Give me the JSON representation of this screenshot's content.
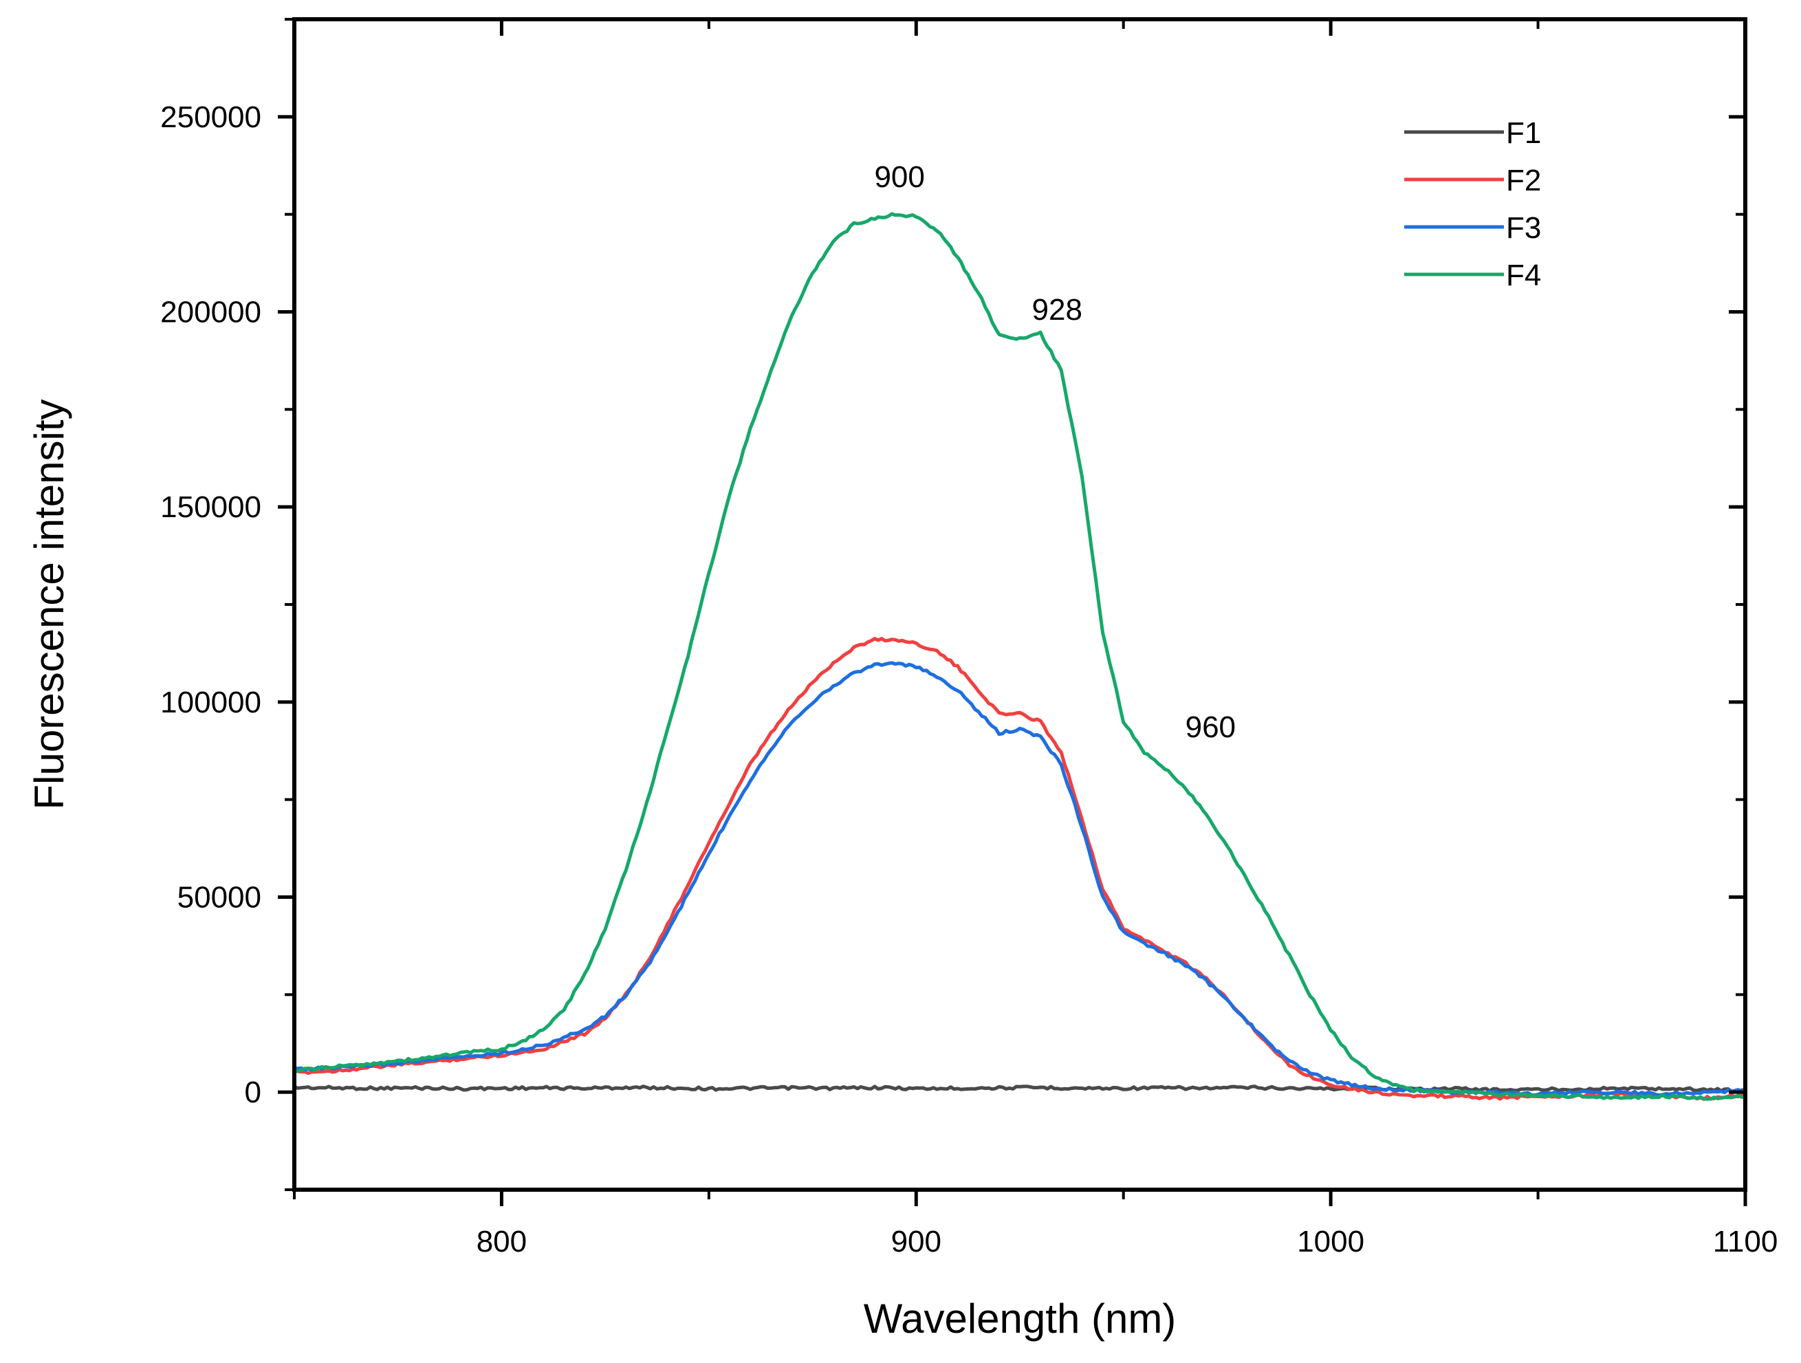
{
  "chart_data": {
    "type": "line",
    "title": "",
    "xlabel": "Wavelength (nm)",
    "ylabel": "Fluorescence intensity",
    "xlim": [
      750,
      1100
    ],
    "ylim": [
      -25000,
      275000
    ],
    "xticks": [
      800,
      900,
      1000,
      1100
    ],
    "yticks": [
      0,
      50000,
      100000,
      150000,
      200000,
      250000
    ],
    "x_minor_ticks": [
      750,
      850,
      950,
      1050
    ],
    "y_minor_ticks": [
      -25000,
      25000,
      75000,
      125000,
      175000,
      225000,
      275000
    ],
    "grid": false,
    "legend_position": "top-right",
    "series": [
      {
        "name": "F1",
        "color": "#4a4a4a",
        "x": [
          750,
          760,
          770,
          780,
          790,
          800,
          810,
          820,
          830,
          840,
          850,
          860,
          870,
          880,
          890,
          900,
          910,
          920,
          930,
          940,
          950,
          960,
          970,
          980,
          990,
          1000,
          1010,
          1020,
          1030,
          1040,
          1050,
          1060,
          1070,
          1080,
          1090,
          1100
        ],
        "values": [
          1200,
          1100,
          1000,
          1100,
          900,
          1000,
          1100,
          1000,
          1200,
          1100,
          900,
          1000,
          1100,
          1000,
          1200,
          900,
          1000,
          1100,
          1200,
          1000,
          1000,
          1100,
          1000,
          1200,
          1000,
          900,
          1000,
          800,
          900,
          600,
          700,
          800,
          1000,
          900,
          700,
          500
        ]
      },
      {
        "name": "F2",
        "color": "#f04040",
        "x": [
          750,
          760,
          770,
          780,
          790,
          800,
          810,
          820,
          825,
          830,
          835,
          840,
          845,
          850,
          855,
          860,
          865,
          870,
          875,
          880,
          885,
          890,
          895,
          900,
          905,
          910,
          915,
          920,
          925,
          930,
          935,
          940,
          945,
          950,
          955,
          960,
          965,
          970,
          975,
          980,
          985,
          990,
          995,
          1000,
          1010,
          1020,
          1030,
          1040,
          1050,
          1060,
          1070,
          1080,
          1090,
          1100
        ],
        "values": [
          5000,
          5500,
          6500,
          7500,
          8500,
          9500,
          11000,
          15000,
          19000,
          25000,
          33000,
          43000,
          53000,
          64000,
          74000,
          84000,
          92000,
          99000,
          105000,
          110000,
          114000,
          116000,
          116000,
          115000,
          113000,
          109000,
          103000,
          97000,
          97000,
          95000,
          87000,
          70000,
          52000,
          42000,
          39000,
          36000,
          33000,
          29000,
          24000,
          18000,
          12000,
          7000,
          4000,
          2000,
          0,
          -1000,
          -1000,
          -1500,
          -1000,
          -1000,
          -500,
          -1000,
          -1500,
          -1000
        ]
      },
      {
        "name": "F3",
        "color": "#1e6fe0",
        "x": [
          750,
          760,
          770,
          780,
          790,
          800,
          810,
          820,
          825,
          830,
          835,
          840,
          845,
          850,
          855,
          860,
          865,
          870,
          875,
          880,
          885,
          890,
          895,
          900,
          905,
          910,
          915,
          920,
          925,
          930,
          935,
          940,
          945,
          950,
          955,
          960,
          965,
          970,
          975,
          980,
          985,
          990,
          995,
          1000,
          1010,
          1020,
          1030,
          1040,
          1050,
          1060,
          1070,
          1080,
          1090,
          1100
        ],
        "values": [
          6000,
          6200,
          7000,
          8000,
          9000,
          10000,
          12000,
          16000,
          19500,
          25000,
          32000,
          41000,
          51000,
          61000,
          71000,
          80000,
          88000,
          95000,
          100000,
          104000,
          107500,
          109500,
          110000,
          109000,
          106500,
          103000,
          97500,
          92000,
          93000,
          91000,
          84000,
          68000,
          50000,
          41000,
          38000,
          35500,
          32500,
          28500,
          23500,
          18000,
          12500,
          8000,
          5000,
          3000,
          1000,
          500,
          0,
          0,
          -500,
          0,
          0,
          -500,
          0,
          500
        ]
      },
      {
        "name": "F4",
        "color": "#16a86a",
        "x": [
          750,
          760,
          770,
          780,
          790,
          800,
          805,
          810,
          815,
          820,
          825,
          830,
          835,
          840,
          845,
          850,
          855,
          860,
          865,
          870,
          875,
          880,
          885,
          890,
          895,
          900,
          905,
          910,
          915,
          920,
          925,
          930,
          935,
          940,
          945,
          950,
          955,
          960,
          965,
          970,
          975,
          980,
          985,
          990,
          995,
          1000,
          1005,
          1010,
          1015,
          1020,
          1030,
          1040,
          1050,
          1060,
          1070,
          1080,
          1090,
          1100
        ],
        "values": [
          5500,
          6500,
          7500,
          8500,
          10000,
          11000,
          13000,
          16000,
          21000,
          30000,
          42000,
          57000,
          74000,
          93000,
          112000,
          133000,
          153000,
          170000,
          185000,
          199000,
          210000,
          218000,
          222500,
          224000,
          225000,
          224500,
          221000,
          214000,
          205000,
          194000,
          193000,
          194500,
          185000,
          158000,
          118000,
          95000,
          87000,
          83000,
          78000,
          71000,
          63000,
          54000,
          45000,
          35000,
          25000,
          16000,
          9000,
          4500,
          2000,
          500,
          0,
          -500,
          -1000,
          -1000,
          -1500,
          -1000,
          -1500,
          -1000
        ]
      }
    ],
    "annotations": [
      {
        "text": "900",
        "x": 896,
        "y": 232000
      },
      {
        "text": "928",
        "x": 934,
        "y": 198000
      },
      {
        "text": "960",
        "x": 971,
        "y": 91000
      }
    ]
  }
}
